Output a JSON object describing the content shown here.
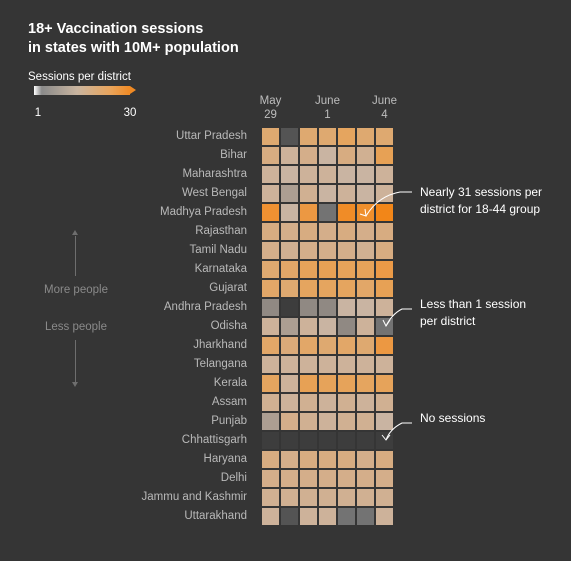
{
  "chart_data": {
    "type": "heatmap",
    "title_lines": [
      "18+ Vaccination sessions",
      "in states with 10M+ population"
    ],
    "legend": {
      "title": "Sessions per district",
      "min_label": "1",
      "max_label": "30",
      "min": 1,
      "max": 30
    },
    "side_labels": {
      "top": "More people",
      "bottom": "Less people"
    },
    "x_tick_labels": [
      {
        "col": 0,
        "lines": [
          "May",
          "29"
        ]
      },
      {
        "col": 3,
        "lines": [
          "June",
          "1"
        ]
      },
      {
        "col": 6,
        "lines": [
          "June",
          "4"
        ]
      }
    ],
    "columns": 7,
    "rows": [
      {
        "state": "Uttar Pradesh",
        "values": [
          10,
          0.5,
          10,
          10,
          12,
          10,
          10
        ]
      },
      {
        "state": "Bihar",
        "values": [
          8,
          5,
          7,
          4,
          8,
          6,
          14
        ]
      },
      {
        "state": "Maharashtra",
        "values": [
          5,
          4,
          5,
          5,
          4,
          4,
          5
        ]
      },
      {
        "state": "West Bengal",
        "values": [
          5,
          3,
          6,
          4,
          5,
          4,
          5
        ]
      },
      {
        "state": "Madhya Pradesh",
        "values": [
          22,
          4,
          18,
          1,
          26,
          24,
          31
        ]
      },
      {
        "state": "Rajasthan",
        "values": [
          8,
          7,
          8,
          7,
          8,
          7,
          8
        ]
      },
      {
        "state": "Tamil Nadu",
        "values": [
          7,
          6,
          7,
          7,
          7,
          6,
          8
        ]
      },
      {
        "state": "Karnataka",
        "values": [
          10,
          11,
          13,
          14,
          13,
          13,
          17
        ]
      },
      {
        "state": "Gujarat",
        "values": [
          11,
          10,
          12,
          12,
          12,
          11,
          14
        ]
      },
      {
        "state": "Andhra Pradesh",
        "values": [
          2,
          0,
          2,
          2,
          4,
          4,
          5
        ]
      },
      {
        "state": "Odisha",
        "values": [
          5,
          3,
          5,
          4,
          2,
          5,
          1
        ]
      },
      {
        "state": "Jharkhand",
        "values": [
          11,
          9,
          11,
          10,
          11,
          10,
          18
        ]
      },
      {
        "state": "Telangana",
        "values": [
          5,
          5,
          5,
          5,
          5,
          5,
          5
        ]
      },
      {
        "state": "Kerala",
        "values": [
          12,
          5,
          14,
          13,
          13,
          12,
          13
        ]
      },
      {
        "state": "Assam",
        "values": [
          6,
          5,
          6,
          5,
          6,
          5,
          6
        ]
      },
      {
        "state": "Punjab",
        "values": [
          3,
          7,
          6,
          5,
          6,
          6,
          4
        ]
      },
      {
        "state": "Chhattisgarh",
        "values": [
          0,
          0,
          0,
          0,
          0,
          0,
          0
        ]
      },
      {
        "state": "Haryana",
        "values": [
          8,
          7,
          8,
          8,
          8,
          7,
          8
        ]
      },
      {
        "state": "Delhi",
        "values": [
          7,
          7,
          7,
          7,
          7,
          7,
          7
        ]
      },
      {
        "state": "Jammu and Kashmir",
        "values": [
          6,
          6,
          6,
          6,
          6,
          6,
          6
        ]
      },
      {
        "state": "Uttarakhand",
        "values": [
          5,
          0.5,
          5,
          5,
          1,
          1,
          5
        ]
      }
    ],
    "annotations": [
      {
        "lines": [
          "Nearly 31 sessions per",
          "district for 18-44 group"
        ]
      },
      {
        "lines": [
          "Less than 1 session",
          "per district"
        ]
      },
      {
        "lines": [
          "No sessions"
        ]
      }
    ]
  }
}
